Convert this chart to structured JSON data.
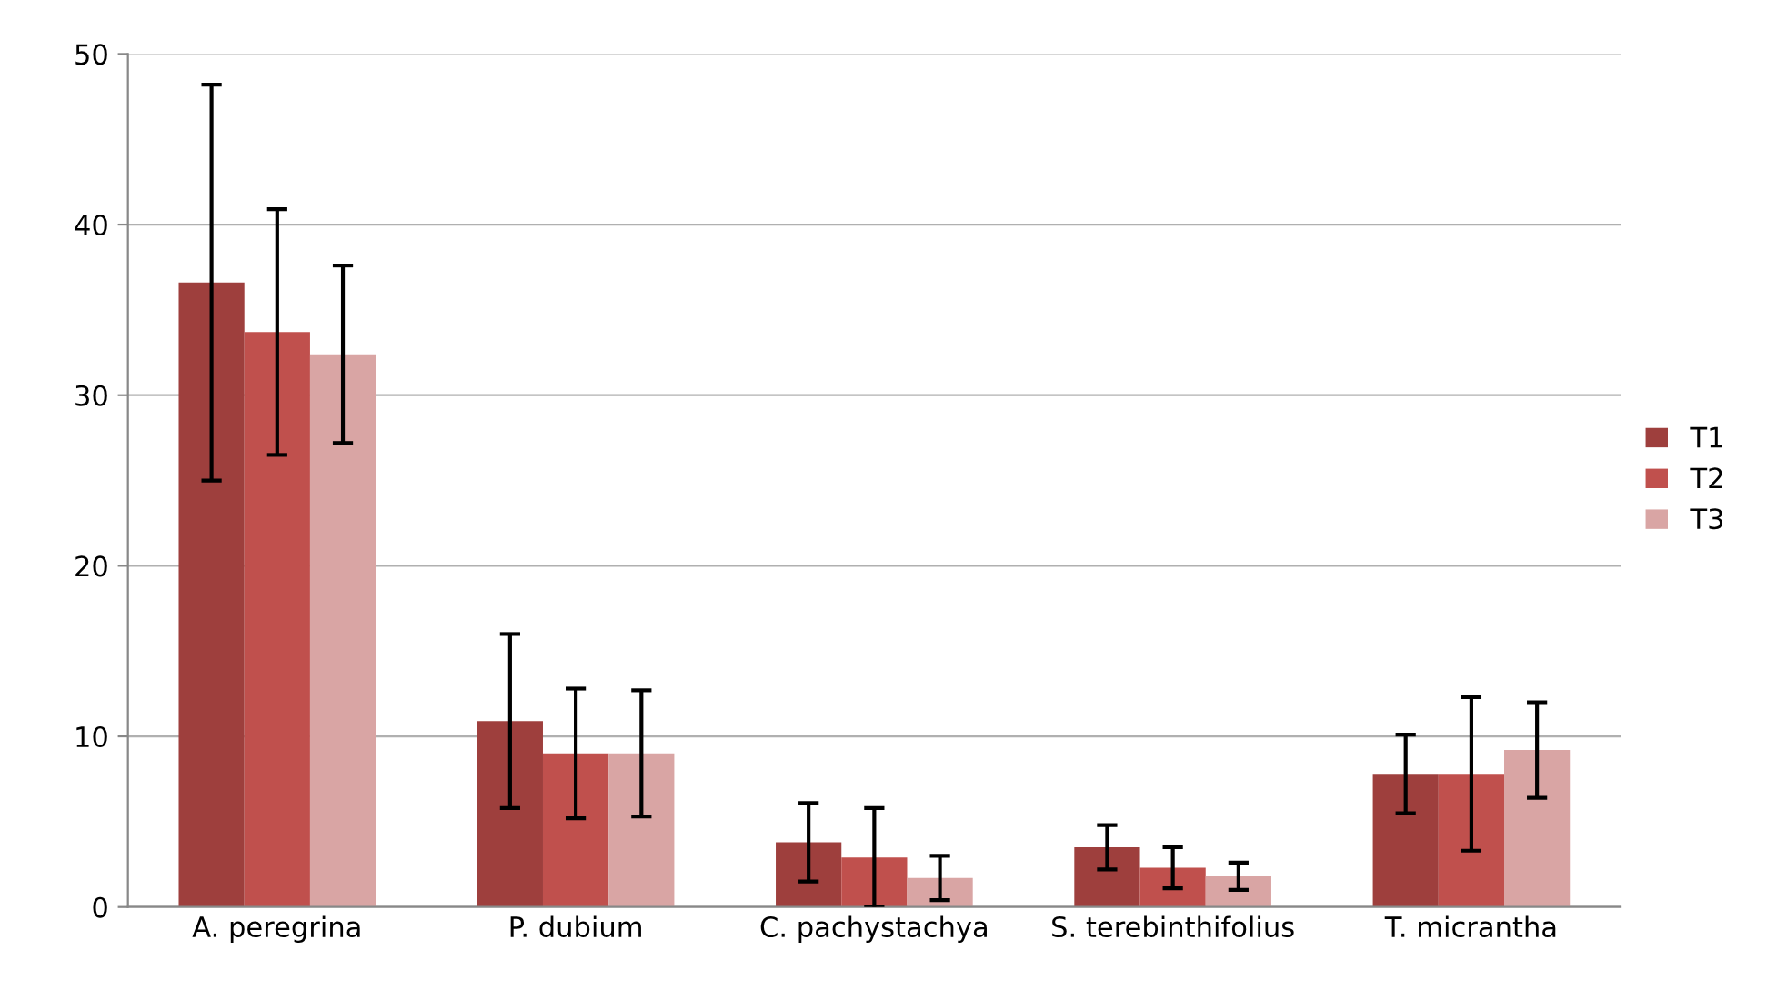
{
  "chart_data": {
    "type": "bar",
    "categories": [
      "A. peregrina",
      "P. dubium",
      "C. pachystachya",
      "S. terebinthifolius",
      "T. micrantha"
    ],
    "series": [
      {
        "name": "T1",
        "color": "#9e3f3d",
        "values": [
          36.6,
          10.9,
          3.8,
          3.5,
          7.8
        ],
        "errors": [
          11.6,
          5.1,
          2.3,
          1.3,
          2.3
        ]
      },
      {
        "name": "T2",
        "color": "#c0504d",
        "values": [
          33.7,
          9.0,
          2.9,
          2.3,
          7.8
        ],
        "errors": [
          7.2,
          3.8,
          2.9,
          1.2,
          4.5
        ]
      },
      {
        "name": "T3",
        "color": "#d9a5a4",
        "values": [
          32.4,
          9.0,
          1.7,
          1.8,
          9.2
        ],
        "errors": [
          5.2,
          3.7,
          1.3,
          0.8,
          2.8
        ]
      }
    ],
    "ylim": [
      0,
      50
    ],
    "yticks": [
      0,
      10,
      20,
      30,
      40,
      50
    ],
    "grid": "y",
    "legend": "right"
  }
}
